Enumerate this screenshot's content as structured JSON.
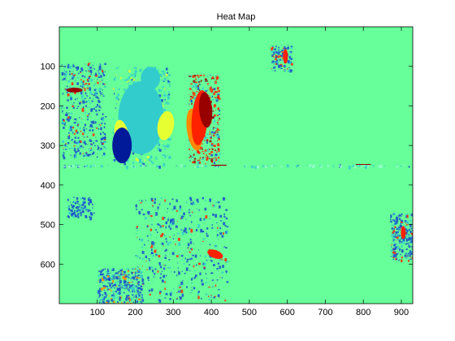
{
  "chart_data": {
    "type": "heatmap",
    "title": "Heat Map",
    "xlabel": "",
    "ylabel": "",
    "xlim": [
      0,
      930
    ],
    "ylim": [
      700,
      0
    ],
    "y_axis_direction": "top-to-bottom",
    "x_ticks": [
      100,
      200,
      300,
      400,
      500,
      600,
      700,
      800,
      900
    ],
    "y_ticks": [
      100,
      200,
      300,
      400,
      500,
      600
    ],
    "grid": false,
    "legend": "none",
    "colormap": "jet",
    "background_value_color": "#66ff99",
    "colors": {
      "background": "#66ff99",
      "dark_blue": "#001a99",
      "blue": "#1a4dcc",
      "cyan": "#33cccc",
      "light_cyan": "#99ffcc",
      "yellow": "#e6ff33",
      "orange": "#ff8800",
      "red": "#ff2200",
      "dark_red": "#990000"
    },
    "regions": [
      {
        "name": "cluster-upper-left",
        "x": [
          5,
          120
        ],
        "y": [
          90,
          330
        ],
        "dominant": "blue",
        "detail": "red"
      },
      {
        "name": "cluster-upper-center",
        "x": [
          140,
          290
        ],
        "y": [
          100,
          345
        ],
        "dominant": "cyan",
        "detail": "yellow"
      },
      {
        "name": "cluster-upper-center-right",
        "x": [
          340,
          420
        ],
        "y": [
          120,
          345
        ],
        "dominant": "red",
        "detail": "dark_red"
      },
      {
        "name": "cluster-top-right",
        "x": [
          555,
          610
        ],
        "y": [
          45,
          110
        ],
        "dominant": "blue",
        "detail": "red"
      },
      {
        "name": "cluster-lower-left",
        "x": [
          20,
          90
        ],
        "y": [
          430,
          480
        ],
        "dominant": "blue",
        "detail": "blue"
      },
      {
        "name": "cluster-lower-center",
        "x": [
          200,
          440
        ],
        "y": [
          430,
          690
        ],
        "dominant": "blue",
        "detail": "red"
      },
      {
        "name": "cluster-lower-left-2",
        "x": [
          100,
          220
        ],
        "y": [
          610,
          700
        ],
        "dominant": "blue",
        "detail": "orange"
      },
      {
        "name": "cluster-right-edge",
        "x": [
          870,
          930
        ],
        "y": [
          470,
          590
        ],
        "dominant": "blue",
        "detail": "red"
      },
      {
        "name": "streak-mid",
        "x": [
          0,
          930
        ],
        "y": [
          348,
          352
        ],
        "dominant": "light_cyan",
        "detail": "cyan"
      }
    ]
  }
}
